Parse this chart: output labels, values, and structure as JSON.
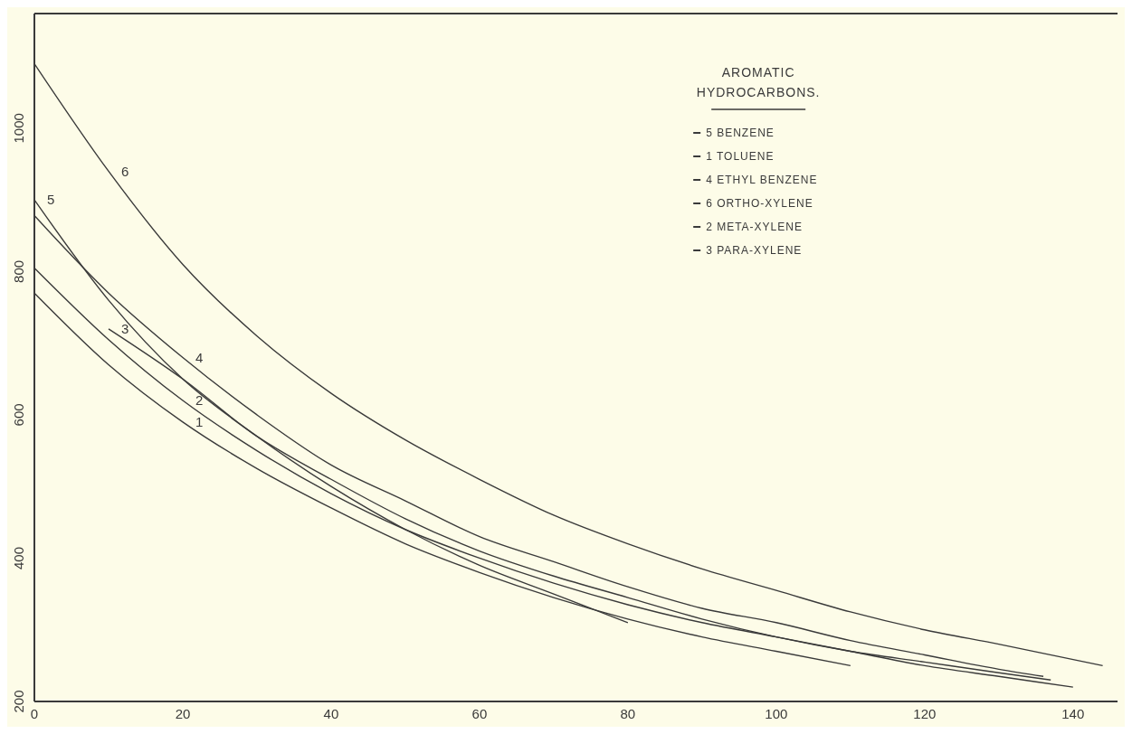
{
  "chart_data": {
    "type": "line",
    "legend_title": "AROMATIC HYDROCARBONS.",
    "legend": "top right",
    "marker": "none",
    "line_style": "solid",
    "xlim": [
      0,
      146
    ],
    "xticks": [
      0,
      20,
      40,
      60,
      80,
      100,
      120,
      140
    ],
    "ylim": [
      200,
      1160
    ],
    "yticks": [
      200,
      400,
      600,
      800,
      1000
    ],
    "series": [
      {
        "name": "5 BENZENE",
        "color": "#3a3a3a",
        "x": [
          0,
          10,
          20,
          30,
          40,
          50,
          60,
          70,
          80
        ],
        "values": [
          900,
          760,
          650,
          570,
          500,
          440,
          390,
          350,
          310
        ]
      },
      {
        "name": "1 TOLUENE",
        "color": "#3a3a3a",
        "x": [
          0,
          10,
          20,
          30,
          40,
          50,
          60,
          70,
          80,
          90,
          100,
          110
        ],
        "values": [
          770,
          670,
          590,
          525,
          470,
          420,
          380,
          345,
          315,
          290,
          270,
          250
        ]
      },
      {
        "name": "4 ETHYL BENZENE",
        "color": "#3a3a3a",
        "x": [
          0,
          10,
          20,
          30,
          40,
          50,
          60,
          70,
          80,
          90,
          100,
          110,
          120,
          130,
          136
        ],
        "values": [
          878,
          770,
          680,
          600,
          530,
          480,
          430,
          395,
          360,
          330,
          310,
          285,
          265,
          245,
          235
        ]
      },
      {
        "name": "6 ORTHO-XYLENE",
        "color": "#3a3a3a",
        "x": [
          0,
          10,
          20,
          30,
          40,
          50,
          60,
          70,
          80,
          90,
          100,
          110,
          120,
          130,
          144
        ],
        "values": [
          1090,
          940,
          810,
          710,
          630,
          565,
          510,
          460,
          420,
          385,
          355,
          325,
          300,
          280,
          250
        ]
      },
      {
        "name": "2 META-XYLENE",
        "color": "#3a3a3a",
        "x": [
          0,
          10,
          20,
          30,
          40,
          50,
          60,
          70,
          80,
          90,
          100,
          110,
          120,
          130,
          140
        ],
        "values": [
          805,
          705,
          620,
          550,
          490,
          440,
          400,
          365,
          335,
          310,
          290,
          270,
          250,
          235,
          220
        ]
      },
      {
        "name": "3 PARA-XYLENE",
        "color": "#3a3a3a",
        "x": [
          10,
          20,
          30,
          40,
          50,
          60,
          70,
          80,
          90,
          100,
          110,
          120,
          130,
          137
        ],
        "values": [
          720,
          650,
          570,
          510,
          455,
          410,
          375,
          345,
          315,
          290,
          270,
          255,
          240,
          230
        ]
      }
    ],
    "annotations": [
      {
        "text": "6",
        "x": 10,
        "y": 940
      },
      {
        "text": "5",
        "x": 0,
        "y": 900
      },
      {
        "text": "4",
        "x": 20,
        "y": 680
      },
      {
        "text": "3",
        "x": 10,
        "y": 720
      },
      {
        "text": "2",
        "x": 20,
        "y": 620
      },
      {
        "text": "1",
        "x": 20,
        "y": 590
      }
    ]
  }
}
